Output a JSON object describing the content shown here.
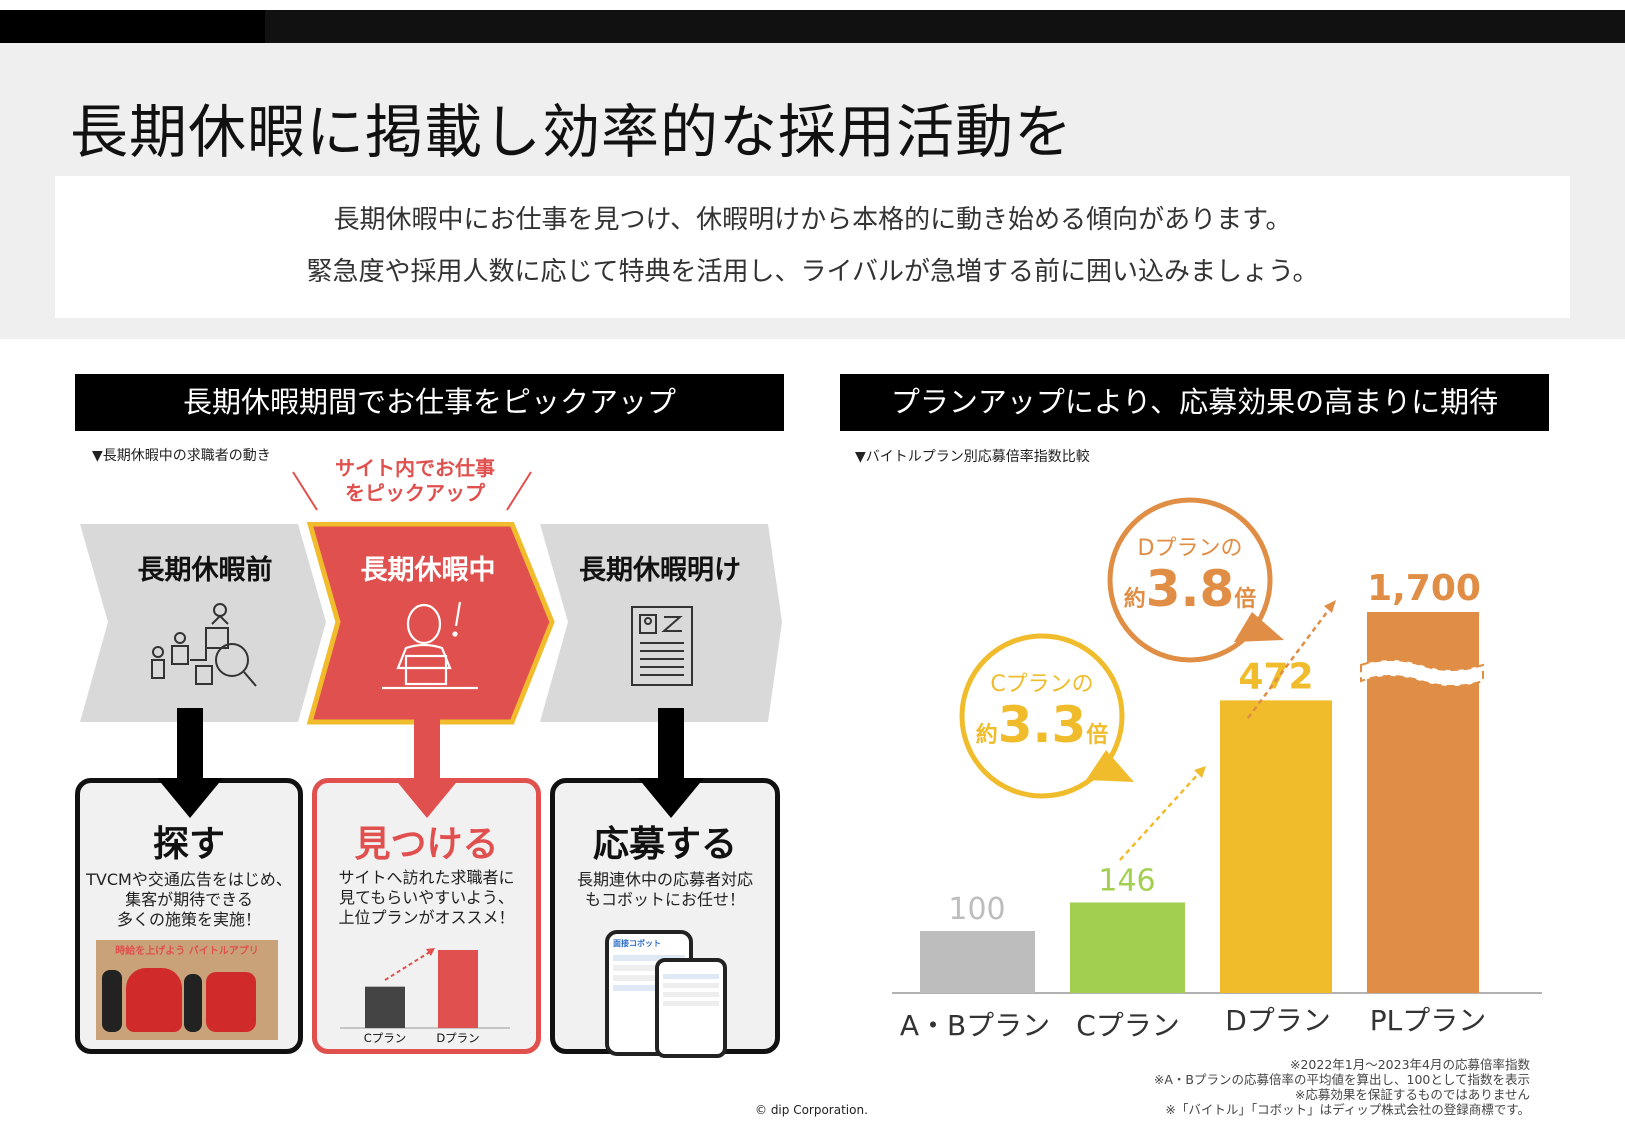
{
  "title": "長期休暇に掲載し効率的な採用活動を",
  "intro": {
    "line1": "長期休暇中にお仕事を見つけ、休暇明けから本格的に動き始める傾向があります。",
    "line2": "緊急度や採用人数に応じて特典を活用し、ライバルが急増する前に囲い込みましょう。"
  },
  "left": {
    "header": "長期休暇期間でお仕事をピックアップ",
    "note": "▼長期休暇中の求職者の動き",
    "callout_line1": "サイト内でお仕事",
    "callout_line2": "をピックアップ",
    "stages": [
      {
        "label": "長期休暇前",
        "icon": "job-search-flow-icon"
      },
      {
        "label": "長期休暇中",
        "icon": "person-at-laptop-icon"
      },
      {
        "label": "長期休暇明け",
        "icon": "resume-document-icon"
      }
    ],
    "cards": [
      {
        "title": "探す",
        "lines": [
          "TVCMや交通広告をはじめ、",
          "集客が期待できる",
          "多くの施策を実施！"
        ],
        "image": "tv-commercial-photo",
        "photo_caption": "時給を上げよう バイトルアプリ"
      },
      {
        "title": "見つける",
        "lines": [
          "サイトへ訪れた求職者に",
          "見てもらいやすいよう、",
          "上位プランがオススメ！"
        ],
        "mini_chart": {
          "categories": [
            "Cプラン",
            "Dプラン"
          ],
          "values": [
            0.53,
            1.0
          ]
        }
      },
      {
        "title": "応募する",
        "lines": [
          "長期連休中の応募者対応",
          "もコボットにお任せ！"
        ],
        "image": "smartphone-app-screens",
        "phone_label": "面接コボット"
      }
    ]
  },
  "right": {
    "header": "プランアップにより、応募効果の高まりに期待",
    "note": "▼バイトルプラン別応募倍率指数比較",
    "bubble_c": {
      "line1": "Cプランの",
      "prefix": "約",
      "number": "3.3",
      "suffix": "倍"
    },
    "bubble_d": {
      "line1": "Dプランの",
      "prefix": "約",
      "number": "3.8",
      "suffix": "倍"
    },
    "footnotes": [
      "※2022年1月〜2023年4月の応募倍率指数",
      "※A・Bプランの応募倍率の平均値を算出し、100として指数を表示",
      "※応募効果を保証するものではありません",
      "※「バイトル」「コボット」はディップ株式会社の登録商標です。"
    ]
  },
  "chart_data": {
    "type": "bar",
    "categories": [
      "A・Bプラン",
      "Cプラン",
      "Dプラン",
      "PLプラン"
    ],
    "values": [
      100,
      146,
      472,
      1700
    ],
    "value_labels": [
      "100",
      "146",
      "472",
      "1,700"
    ],
    "colors": [
      "#bdbdbd",
      "#a3cf50",
      "#f0bc2c",
      "#e08e45"
    ],
    "axis_break": true,
    "title": "",
    "xlabel": "",
    "ylabel": ""
  },
  "copyright": "© dip Corporation.",
  "colors": {
    "red": "#e0504e",
    "accent_yellow": "#f0bc2c",
    "orange": "#e08e45",
    "dark": "#111111"
  }
}
